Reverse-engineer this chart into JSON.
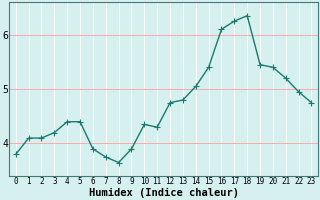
{
  "x": [
    0,
    1,
    2,
    3,
    4,
    5,
    6,
    7,
    8,
    9,
    10,
    11,
    12,
    13,
    14,
    15,
    16,
    17,
    18,
    19,
    20,
    21,
    22,
    23
  ],
  "y": [
    3.8,
    4.1,
    4.1,
    4.2,
    4.4,
    4.4,
    3.9,
    3.75,
    3.65,
    3.9,
    4.35,
    4.3,
    4.75,
    4.8,
    5.05,
    5.4,
    6.1,
    6.25,
    6.35,
    5.45,
    5.4,
    5.2,
    4.95,
    4.75
  ],
  "line_color": "#1a7a6e",
  "marker": "D",
  "marker_size": 2.5,
  "linewidth": 1.0,
  "xlabel": "Humidex (Indice chaleur)",
  "xlabel_fontsize": 7.5,
  "bg_color": "#d6f0f0",
  "xlim": [
    -0.5,
    23.5
  ],
  "ylim": [
    3.4,
    6.6
  ],
  "yticks": [
    4,
    5,
    6
  ],
  "xtick_fontsize": 5.5,
  "ytick_fontsize": 7
}
